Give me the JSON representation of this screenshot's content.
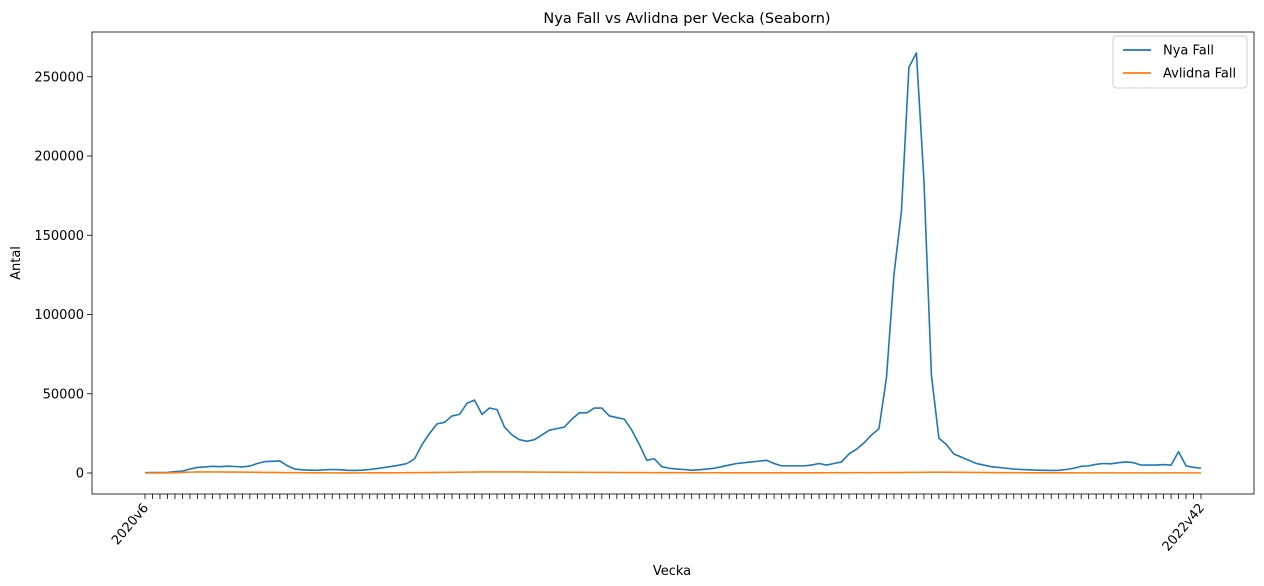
{
  "chart_data": {
    "type": "line",
    "title": "Nya Fall vs Avlidna per Vecka (Seaborn)",
    "xlabel": "Vecka",
    "ylabel": "Antal",
    "ylim": [
      -13250,
      278250
    ],
    "yticks": [
      0,
      50000,
      100000,
      150000,
      200000,
      250000
    ],
    "grid": false,
    "legend_position": "top-right",
    "x_ticks_start": "2020v6",
    "x_ticks_end": "2022v42",
    "series": [
      {
        "name": "Nya Fall",
        "color": "#1f77b4",
        "values": [
          200,
          300,
          300,
          400,
          800,
          1200,
          2500,
          3500,
          3800,
          4200,
          4000,
          4300,
          4100,
          3800,
          4400,
          6000,
          7200,
          7400,
          7600,
          4600,
          2500,
          2000,
          1800,
          1700,
          2000,
          2200,
          2100,
          1700,
          1600,
          1800,
          2200,
          2800,
          3500,
          4200,
          5000,
          6000,
          9000,
          18000,
          25000,
          31000,
          32000,
          36000,
          37000,
          44000,
          46000,
          37000,
          41000,
          40000,
          29000,
          24000,
          21000,
          20000,
          21000,
          24000,
          27000,
          28000,
          29000,
          34000,
          38000,
          38000,
          41000,
          41000,
          36000,
          35000,
          34000,
          27000,
          18000,
          8000,
          9000,
          4000,
          3000,
          2500,
          2200,
          1800,
          2000,
          2500,
          3000,
          4000,
          5000,
          6000,
          6500,
          7000,
          7500,
          8000,
          6000,
          4500,
          4500,
          4500,
          4500,
          5000,
          6000,
          5000,
          6000,
          7000,
          12000,
          15000,
          19000,
          24000,
          28000,
          60000,
          125000,
          165000,
          256000,
          265000,
          185000,
          62000,
          22000,
          18000,
          12000,
          10000,
          8000,
          6000,
          5000,
          4000,
          3500,
          3000,
          2500,
          2200,
          2000,
          1800,
          1700,
          1600,
          1700,
          2200,
          3000,
          4200,
          4500,
          5500,
          6000,
          5800,
          6500,
          7000,
          6500,
          5000,
          5000,
          5000,
          5300,
          4900,
          13500,
          4500,
          3600,
          3000
        ]
      },
      {
        "name": "Avlidna Fall",
        "color": "#ff7f0e",
        "values": [
          0,
          0,
          0,
          50,
          150,
          350,
          550,
          650,
          700,
          680,
          650,
          620,
          580,
          550,
          520,
          450,
          380,
          330,
          280,
          230,
          180,
          150,
          130,
          110,
          90,
          80,
          70,
          70,
          70,
          80,
          90,
          100,
          110,
          130,
          150,
          170,
          200,
          250,
          300,
          350,
          400,
          450,
          500,
          550,
          600,
          650,
          700,
          700,
          700,
          680,
          650,
          620,
          580,
          550,
          520,
          490,
          460,
          430,
          410,
          390,
          370,
          350,
          330,
          310,
          290,
          270,
          250,
          240,
          230,
          220,
          210,
          200,
          190,
          180,
          170,
          160,
          150,
          140,
          130,
          120,
          110,
          100,
          100,
          100,
          100,
          100,
          100,
          110,
          120,
          130,
          140,
          150,
          160,
          170,
          180,
          190,
          200,
          220,
          240,
          260,
          280,
          300,
          350,
          400,
          450,
          500,
          520,
          500,
          450,
          420,
          380,
          340,
          300,
          260,
          230,
          200,
          180,
          160,
          140,
          130,
          120,
          110,
          100,
          95,
          90,
          85,
          80,
          80,
          80,
          80,
          80,
          80,
          80,
          80,
          80,
          80,
          80,
          80,
          80,
          80,
          80,
          80
        ]
      }
    ]
  }
}
